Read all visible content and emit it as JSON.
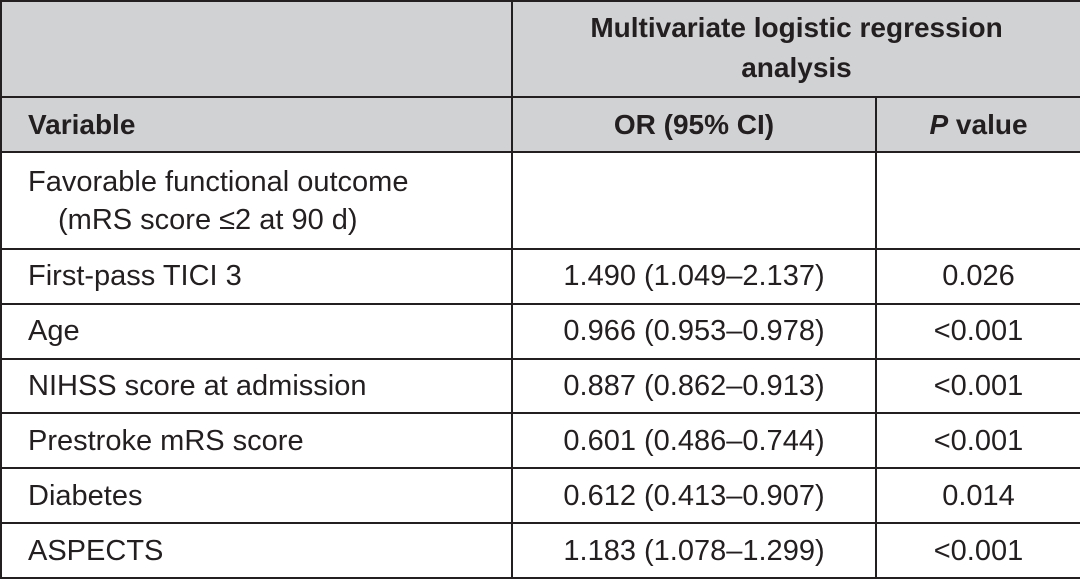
{
  "table": {
    "group_header": "Multivariate logistic regression analysis",
    "columns": {
      "variable": "Variable",
      "or_ci": "OR (95% CI)",
      "p_letter": "P",
      "p_rest": " value"
    },
    "section": {
      "line1": "Favorable functional outcome",
      "line2": "(mRS score ≤2 at 90 d)"
    },
    "rows": [
      {
        "variable": "First-pass TICI 3",
        "or_ci": "1.490 (1.049–2.137)",
        "p": "0.026"
      },
      {
        "variable": "Age",
        "or_ci": "0.966 (0.953–0.978)",
        "p": "<0.001"
      },
      {
        "variable": "NIHSS score at admission",
        "or_ci": "0.887 (0.862–0.913)",
        "p": "<0.001"
      },
      {
        "variable": "Prestroke mRS score",
        "or_ci": "0.601 (0.486–0.744)",
        "p": "<0.001"
      },
      {
        "variable": "Diabetes",
        "or_ci": "0.612 (0.413–0.907)",
        "p": "0.014"
      },
      {
        "variable": "ASPECTS",
        "or_ci": "1.183 (1.078–1.299)",
        "p": "<0.001"
      }
    ]
  }
}
